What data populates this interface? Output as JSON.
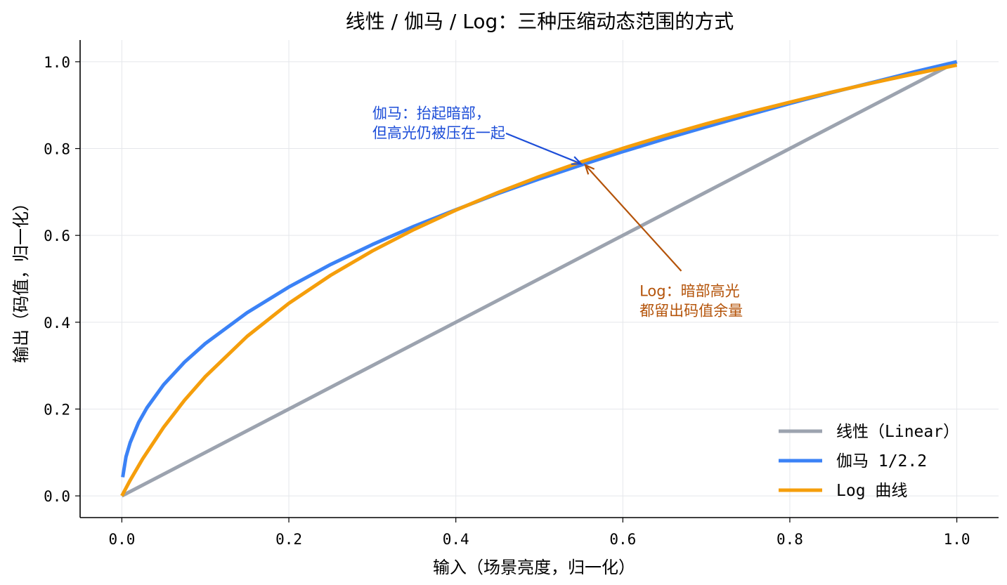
{
  "chart_data": {
    "type": "line",
    "title": "线性 / 伽马 / Log：三种压缩动态范围的方式",
    "xlabel": "输入（场景亮度，归一化）",
    "ylabel": "输出（码值，归一化）",
    "xlim": [
      -0.05,
      1.05
    ],
    "ylim": [
      -0.05,
      1.05
    ],
    "xticks": [
      0.0,
      0.2,
      0.4,
      0.6,
      0.8,
      1.0
    ],
    "xtick_labels": [
      "0.0",
      "0.2",
      "0.4",
      "0.6",
      "0.8",
      "1.0"
    ],
    "yticks": [
      0.0,
      0.2,
      0.4,
      0.6,
      0.8,
      1.0
    ],
    "ytick_labels": [
      "0.0",
      "0.2",
      "0.4",
      "0.6",
      "0.8",
      "1.0"
    ],
    "grid": true,
    "legend_position": "lower-right",
    "series": [
      {
        "name": "线性（Linear）",
        "color": "#9ca3af",
        "x": [
          0,
          0.1,
          0.2,
          0.3,
          0.4,
          0.5,
          0.6,
          0.7,
          0.8,
          0.9,
          1.0
        ],
        "y": [
          0,
          0.1,
          0.2,
          0.3,
          0.4,
          0.5,
          0.6,
          0.7,
          0.8,
          0.9,
          1.0
        ]
      },
      {
        "name": "伽马 1/2.2",
        "color": "#3b82f6",
        "x": [
          0.001,
          0.005,
          0.01,
          0.02,
          0.03,
          0.05,
          0.075,
          0.1,
          0.15,
          0.2,
          0.25,
          0.3,
          0.35,
          0.4,
          0.45,
          0.5,
          0.55,
          0.6,
          0.65,
          0.7,
          0.75,
          0.8,
          0.85,
          0.9,
          0.95,
          1.0
        ],
        "y": [
          0.043,
          0.09,
          0.123,
          0.169,
          0.203,
          0.256,
          0.308,
          0.351,
          0.422,
          0.481,
          0.533,
          0.579,
          0.621,
          0.659,
          0.696,
          0.73,
          0.762,
          0.793,
          0.822,
          0.85,
          0.877,
          0.904,
          0.929,
          0.953,
          0.977,
          1.0
        ]
      },
      {
        "name": "Log 曲线",
        "color": "#f59e0b",
        "x": [
          0,
          0.01,
          0.025,
          0.05,
          0.075,
          0.1,
          0.15,
          0.2,
          0.25,
          0.3,
          0.35,
          0.4,
          0.45,
          0.5,
          0.55,
          0.6,
          0.65,
          0.7,
          0.75,
          0.8,
          0.85,
          0.9,
          0.95,
          1.0
        ],
        "y": [
          0,
          0.0363,
          0.0856,
          0.1579,
          0.2202,
          0.2749,
          0.3674,
          0.4435,
          0.5081,
          0.5642,
          0.6138,
          0.6582,
          0.6985,
          0.7353,
          0.7691,
          0.8005,
          0.8297,
          0.857,
          0.8827,
          0.9069,
          0.9299,
          0.9517,
          0.9724,
          0.9922
        ]
      }
    ],
    "annotations": [
      {
        "lines": [
          "伽马：抬起暗部，",
          "但高光仍被压在一起"
        ],
        "color": "#1d4ed8",
        "text_xy": [
          0.3,
          0.87
        ],
        "point_xy": [
          0.55,
          0.765
        ],
        "arrow_from": [
          0.46,
          0.835
        ],
        "text_anchor": "start"
      },
      {
        "lines": [
          "Log：暗部高光",
          "都留出码值余量"
        ],
        "color": "#b45309",
        "text_xy": [
          0.62,
          0.46
        ],
        "point_xy": [
          0.555,
          0.762
        ],
        "arrow_from": [
          0.67,
          0.518
        ],
        "text_anchor": "start"
      }
    ]
  }
}
